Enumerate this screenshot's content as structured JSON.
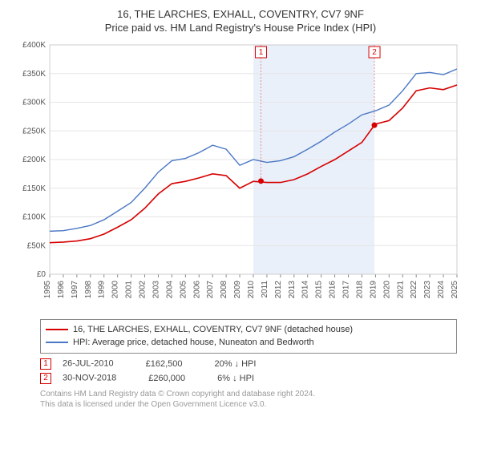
{
  "title": "16, THE LARCHES, EXHALL, COVENTRY, CV7 9NF",
  "subtitle": "Price paid vs. HM Land Registry's House Price Index (HPI)",
  "chart": {
    "type": "line",
    "background_color": "#ffffff",
    "plot_border_color": "#cccccc",
    "grid_color": "#e5e5e5",
    "highlight_band": {
      "x_start": 2010,
      "x_end": 2018.92,
      "fill": "#eaf0fa"
    },
    "xlim": [
      1995,
      2025
    ],
    "years": [
      1995,
      1996,
      1997,
      1998,
      1999,
      2000,
      2001,
      2002,
      2003,
      2004,
      2005,
      2006,
      2007,
      2008,
      2009,
      2010,
      2011,
      2012,
      2013,
      2014,
      2015,
      2016,
      2017,
      2018,
      2019,
      2020,
      2021,
      2022,
      2023,
      2024,
      2025
    ],
    "ylim": [
      0,
      400000
    ],
    "ytick_step": 50000,
    "yticks": [
      "£0",
      "£50K",
      "£100K",
      "£150K",
      "£200K",
      "£250K",
      "£300K",
      "£350K",
      "£400K"
    ],
    "series": [
      {
        "name": "property",
        "label": "16, THE LARCHES, EXHALL, COVENTRY, CV7 9NF (detached house)",
        "color": "#d60000",
        "width": 1.6,
        "data": [
          [
            1995,
            55000
          ],
          [
            1996,
            56000
          ],
          [
            1997,
            58000
          ],
          [
            1998,
            62000
          ],
          [
            1999,
            70000
          ],
          [
            2000,
            82000
          ],
          [
            2001,
            95000
          ],
          [
            2002,
            115000
          ],
          [
            2003,
            140000
          ],
          [
            2004,
            158000
          ],
          [
            2005,
            162000
          ],
          [
            2006,
            168000
          ],
          [
            2007,
            175000
          ],
          [
            2008,
            172000
          ],
          [
            2009,
            150000
          ],
          [
            2010,
            162000
          ],
          [
            2011,
            160000
          ],
          [
            2012,
            160000
          ],
          [
            2013,
            165000
          ],
          [
            2014,
            175000
          ],
          [
            2015,
            188000
          ],
          [
            2016,
            200000
          ],
          [
            2017,
            215000
          ],
          [
            2018,
            230000
          ],
          [
            2018.92,
            260000
          ],
          [
            2019,
            262000
          ],
          [
            2020,
            268000
          ],
          [
            2021,
            290000
          ],
          [
            2022,
            320000
          ],
          [
            2023,
            325000
          ],
          [
            2024,
            322000
          ],
          [
            2025,
            330000
          ]
        ]
      },
      {
        "name": "hpi",
        "label": "HPI: Average price, detached house, Nuneaton and Bedworth",
        "color": "#4a78c4",
        "width": 1.4,
        "data": [
          [
            1995,
            75000
          ],
          [
            1996,
            76000
          ],
          [
            1997,
            80000
          ],
          [
            1998,
            85000
          ],
          [
            1999,
            95000
          ],
          [
            2000,
            110000
          ],
          [
            2001,
            125000
          ],
          [
            2002,
            150000
          ],
          [
            2003,
            178000
          ],
          [
            2004,
            198000
          ],
          [
            2005,
            202000
          ],
          [
            2006,
            212000
          ],
          [
            2007,
            225000
          ],
          [
            2008,
            218000
          ],
          [
            2009,
            190000
          ],
          [
            2010,
            200000
          ],
          [
            2011,
            195000
          ],
          [
            2012,
            198000
          ],
          [
            2013,
            205000
          ],
          [
            2014,
            218000
          ],
          [
            2015,
            232000
          ],
          [
            2016,
            248000
          ],
          [
            2017,
            262000
          ],
          [
            2018,
            278000
          ],
          [
            2019,
            285000
          ],
          [
            2020,
            295000
          ],
          [
            2021,
            320000
          ],
          [
            2022,
            350000
          ],
          [
            2023,
            352000
          ],
          [
            2024,
            348000
          ],
          [
            2025,
            358000
          ]
        ]
      }
    ],
    "markers": [
      {
        "n": "1",
        "x": 2010.56,
        "y": 162500,
        "color": "#d60000"
      },
      {
        "n": "2",
        "x": 2018.92,
        "y": 260000,
        "color": "#d60000"
      }
    ],
    "flag_y_top": 400000
  },
  "legend": {
    "items": [
      {
        "color": "#d60000",
        "label": "16, THE LARCHES, EXHALL, COVENTRY, CV7 9NF (detached house)"
      },
      {
        "color": "#4a78c4",
        "label": "HPI: Average price, detached house, Nuneaton and Bedworth"
      }
    ]
  },
  "annotations": [
    {
      "n": "1",
      "color": "#d60000",
      "date": "26-JUL-2010",
      "price": "£162,500",
      "change": "20% ↓ HPI"
    },
    {
      "n": "2",
      "color": "#d60000",
      "date": "30-NOV-2018",
      "price": "£260,000",
      "change": "6% ↓ HPI"
    }
  ],
  "footer": {
    "line1": "Contains HM Land Registry data © Crown copyright and database right 2024.",
    "line2": "This data is licensed under the Open Government Licence v3.0."
  }
}
